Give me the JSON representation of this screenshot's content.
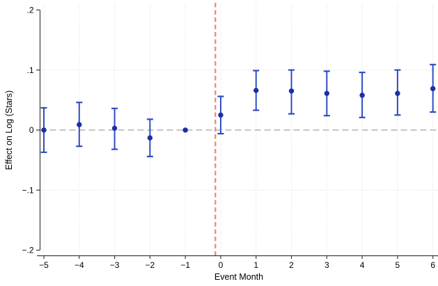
{
  "chart_data": {
    "type": "scatter",
    "subtype": "event-study-errorbar",
    "title": "",
    "xlabel": "Event Month",
    "ylabel": "Effect on Log (Stars)",
    "x": [
      -5,
      -4,
      -3,
      -2,
      -1,
      0,
      1,
      2,
      3,
      4,
      5,
      6
    ],
    "estimates": [
      0.0,
      0.009,
      0.003,
      -0.013,
      0.0,
      0.025,
      0.066,
      0.065,
      0.061,
      0.058,
      0.061,
      0.069
    ],
    "ci_low": [
      -0.037,
      -0.027,
      -0.032,
      -0.044,
      null,
      -0.006,
      0.033,
      0.027,
      0.024,
      0.021,
      0.025,
      0.03
    ],
    "ci_high": [
      0.037,
      0.046,
      0.036,
      0.018,
      null,
      0.056,
      0.099,
      0.1,
      0.098,
      0.096,
      0.1,
      0.109
    ],
    "xlim": [
      -5.6,
      6.15
    ],
    "ylim": [
      -0.2,
      0.2
    ],
    "x_ticks": [
      -5,
      -4,
      -3,
      -2,
      -1,
      0,
      1,
      2,
      3,
      4,
      5,
      6
    ],
    "x_tick_labels": [
      "−5",
      "−4",
      "−3",
      "−2",
      "−1",
      "0",
      "1",
      "2",
      "3",
      "4",
      "5",
      "6"
    ],
    "y_ticks": [
      0.2,
      0.1,
      0,
      -0.1,
      -0.2
    ],
    "y_tick_labels": [
      ".2",
      ".1",
      "0",
      "−.1",
      "−.2"
    ],
    "grid_y_values": [
      0.1,
      -0.1
    ],
    "zero_line_y": 0,
    "reference_line_x": -0.15,
    "grid": true,
    "legend": "none",
    "colors": {
      "marker": "#1c2fa3",
      "ci_line": "#2e4cc3",
      "reference_line": "#e9837e",
      "zero_line": "#bdbdbd",
      "grid": "#d6d6da",
      "axis": "#3c3c3c",
      "text": "#000000",
      "background": "#ffffff"
    }
  }
}
